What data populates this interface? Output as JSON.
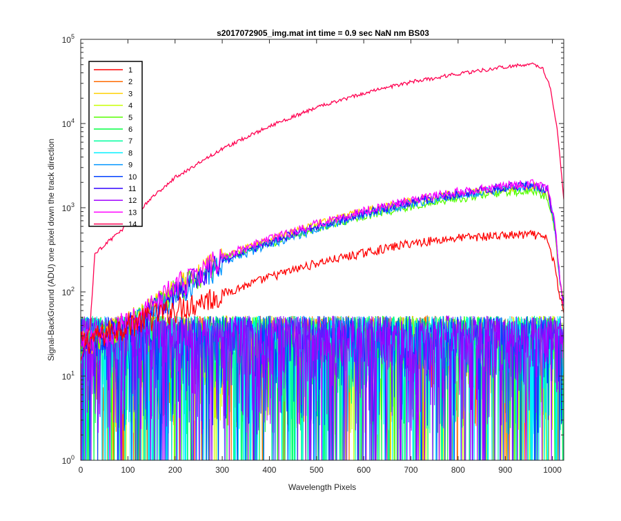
{
  "chart_data": {
    "type": "line",
    "title": "s2017072905_img.mat int time = 0.9 sec  NaN nm BS03",
    "xlabel": "Wavelength Pixels",
    "ylabel": "Signal-BackGround (ADU) one pixel down the track direction",
    "xlim": [
      0,
      1024
    ],
    "ylim": [
      1,
      100000
    ],
    "yscale": "log",
    "grid": false,
    "legend_position": "top-left",
    "xticks": [
      "0",
      "100",
      "200",
      "300",
      "400",
      "500",
      "600",
      "700",
      "800",
      "900",
      "1000"
    ],
    "xtick_values": [
      0,
      100,
      200,
      300,
      400,
      500,
      600,
      700,
      800,
      900,
      1000
    ],
    "yticks_base": [
      "10",
      "10",
      "10",
      "10",
      "10",
      "10"
    ],
    "yticks_exp": [
      "0",
      "1",
      "2",
      "3",
      "4",
      "5"
    ],
    "ytick_values": [
      1,
      10,
      100,
      1000,
      10000,
      100000
    ],
    "series": [
      {
        "name": "1",
        "color": "#ff0000",
        "kind": "mid",
        "profile": [
          [
            0,
            25
          ],
          [
            100,
            42
          ],
          [
            150,
            52
          ],
          [
            200,
            64
          ],
          [
            300,
            95
          ],
          [
            400,
            150
          ],
          [
            500,
            220
          ],
          [
            600,
            290
          ],
          [
            700,
            380
          ],
          [
            800,
            440
          ],
          [
            900,
            470
          ],
          [
            960,
            480
          ],
          [
            990,
            420
          ],
          [
            1005,
            200
          ],
          [
            1015,
            90
          ],
          [
            1024,
            60
          ]
        ]
      },
      {
        "name": "2",
        "color": "#ff6a00",
        "kind": "noise"
      },
      {
        "name": "3",
        "color": "#ffd000",
        "kind": "high",
        "profile": [
          [
            0,
            25
          ],
          [
            50,
            32
          ],
          [
            100,
            45
          ],
          [
            150,
            68
          ],
          [
            200,
            115
          ],
          [
            300,
            260
          ],
          [
            400,
            420
          ],
          [
            500,
            640
          ],
          [
            600,
            900
          ],
          [
            700,
            1200
          ],
          [
            800,
            1480
          ],
          [
            900,
            1700
          ],
          [
            960,
            1780
          ],
          [
            990,
            1500
          ],
          [
            1005,
            600
          ],
          [
            1015,
            150
          ],
          [
            1024,
            70
          ]
        ]
      },
      {
        "name": "4",
        "color": "#c8ff00",
        "kind": "noise"
      },
      {
        "name": "5",
        "color": "#55ff00",
        "kind": "high",
        "profile": [
          [
            0,
            25
          ],
          [
            50,
            32
          ],
          [
            100,
            44
          ],
          [
            150,
            64
          ],
          [
            200,
            108
          ],
          [
            300,
            240
          ],
          [
            400,
            380
          ],
          [
            500,
            570
          ],
          [
            600,
            800
          ],
          [
            700,
            1050
          ],
          [
            800,
            1300
          ],
          [
            900,
            1520
          ],
          [
            960,
            1600
          ],
          [
            990,
            1350
          ],
          [
            1005,
            550
          ],
          [
            1015,
            140
          ],
          [
            1024,
            70
          ]
        ]
      },
      {
        "name": "6",
        "color": "#00ff40",
        "kind": "noise"
      },
      {
        "name": "7",
        "color": "#00ffa0",
        "kind": "noise"
      },
      {
        "name": "8",
        "color": "#00f0ff",
        "kind": "noise"
      },
      {
        "name": "9",
        "color": "#0095ff",
        "kind": "high",
        "profile": [
          [
            0,
            25
          ],
          [
            50,
            30
          ],
          [
            100,
            40
          ],
          [
            150,
            55
          ],
          [
            200,
            95
          ],
          [
            300,
            225
          ],
          [
            400,
            370
          ],
          [
            500,
            560
          ],
          [
            600,
            820
          ],
          [
            700,
            1120
          ],
          [
            800,
            1420
          ],
          [
            900,
            1680
          ],
          [
            960,
            1800
          ],
          [
            990,
            1560
          ],
          [
            1005,
            620
          ],
          [
            1015,
            150
          ],
          [
            1024,
            70
          ]
        ]
      },
      {
        "name": "10",
        "color": "#0040ff",
        "kind": "noise"
      },
      {
        "name": "11",
        "color": "#3000ff",
        "kind": "high",
        "profile": [
          [
            0,
            25
          ],
          [
            50,
            31
          ],
          [
            100,
            42
          ],
          [
            150,
            60
          ],
          [
            200,
            100
          ],
          [
            300,
            235
          ],
          [
            400,
            390
          ],
          [
            500,
            600
          ],
          [
            600,
            860
          ],
          [
            700,
            1180
          ],
          [
            800,
            1480
          ],
          [
            900,
            1760
          ],
          [
            960,
            1880
          ],
          [
            990,
            1620
          ],
          [
            1005,
            640
          ],
          [
            1015,
            155
          ],
          [
            1024,
            70
          ]
        ]
      },
      {
        "name": "12",
        "color": "#a000ff",
        "kind": "noise"
      },
      {
        "name": "13",
        "color": "#ff00ff",
        "kind": "high",
        "profile": [
          [
            0,
            25
          ],
          [
            50,
            32
          ],
          [
            100,
            46
          ],
          [
            150,
            68
          ],
          [
            200,
            118
          ],
          [
            300,
            265
          ],
          [
            400,
            420
          ],
          [
            500,
            640
          ],
          [
            600,
            910
          ],
          [
            700,
            1240
          ],
          [
            800,
            1540
          ],
          [
            900,
            1820
          ],
          [
            960,
            1950
          ],
          [
            990,
            1700
          ],
          [
            1005,
            660
          ],
          [
            1015,
            160
          ],
          [
            1024,
            70
          ]
        ]
      },
      {
        "name": "14",
        "color": "#ff0050",
        "kind": "top",
        "profile": [
          [
            0,
            15
          ],
          [
            10,
            25
          ],
          [
            20,
            40
          ],
          [
            30,
            280
          ],
          [
            50,
            360
          ],
          [
            80,
            500
          ],
          [
            100,
            650
          ],
          [
            150,
            1300
          ],
          [
            200,
            2300
          ],
          [
            300,
            5000
          ],
          [
            400,
            9300
          ],
          [
            500,
            15500
          ],
          [
            600,
            23000
          ],
          [
            700,
            31000
          ],
          [
            800,
            39000
          ],
          [
            900,
            47000
          ],
          [
            960,
            51000
          ],
          [
            980,
            45000
          ],
          [
            995,
            27000
          ],
          [
            1010,
            9000
          ],
          [
            1024,
            1300
          ]
        ]
      }
    ]
  }
}
